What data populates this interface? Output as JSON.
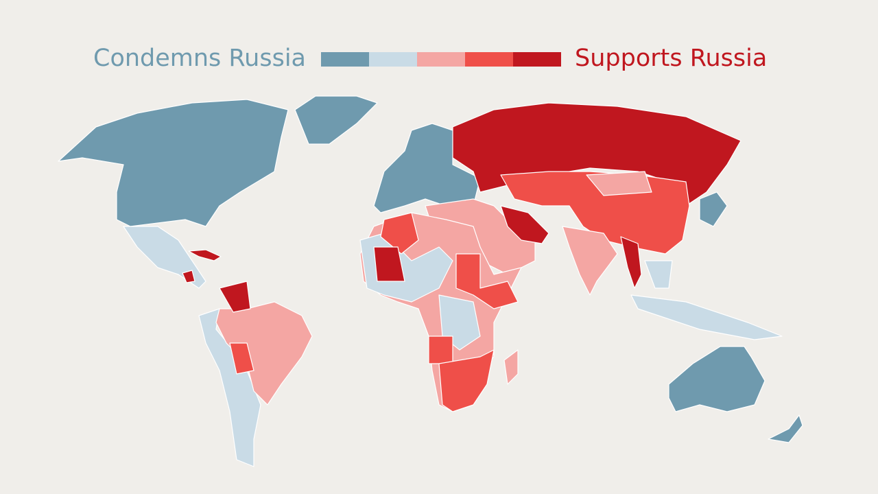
{
  "legend": {
    "left_label": "Condemns Russia",
    "right_label": "Supports Russia",
    "colors": [
      "#6f9aae",
      "#c9dbe6",
      "#f4a6a3",
      "#ef4f49",
      "#c0171f"
    ]
  }
}
